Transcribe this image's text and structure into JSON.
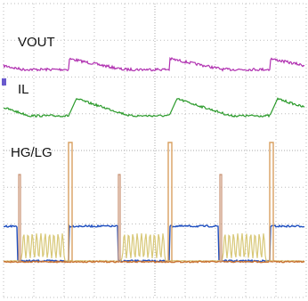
{
  "traces": {
    "vout": {
      "label": "VOUT"
    },
    "il": {
      "label": "IL"
    },
    "gate": {
      "label": "HG/LG"
    }
  }
}
